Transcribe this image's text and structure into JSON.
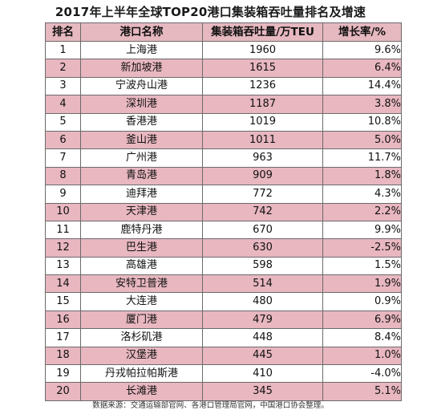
{
  "title": "2017年上半年全球TOP20港口集装箱吞吐量排名及增速",
  "headers": {
    "rank": "排名",
    "port": "港口名称",
    "teu": "集装箱吞吐量/万TEU",
    "growth": "增长率/%"
  },
  "rows": [
    {
      "rank": "1",
      "port": "上海港",
      "teu": "1960",
      "growth": "9.6%"
    },
    {
      "rank": "2",
      "port": "新加坡港",
      "teu": "1615",
      "growth": "6.4%"
    },
    {
      "rank": "3",
      "port": "宁波舟山港",
      "teu": "1236",
      "growth": "14.4%"
    },
    {
      "rank": "4",
      "port": "深圳港",
      "teu": "1187",
      "growth": "3.8%"
    },
    {
      "rank": "5",
      "port": "香港港",
      "teu": "1019",
      "growth": "10.8%"
    },
    {
      "rank": "6",
      "port": "釜山港",
      "teu": "1011",
      "growth": "5.0%"
    },
    {
      "rank": "7",
      "port": "广州港",
      "teu": "963",
      "growth": "11.7%"
    },
    {
      "rank": "8",
      "port": "青岛港",
      "teu": "909",
      "growth": "1.8%"
    },
    {
      "rank": "9",
      "port": "迪拜港",
      "teu": "772",
      "growth": "4.3%"
    },
    {
      "rank": "10",
      "port": "天津港",
      "teu": "742",
      "growth": "2.2%"
    },
    {
      "rank": "11",
      "port": "鹿特丹港",
      "teu": "670",
      "growth": "9.9%"
    },
    {
      "rank": "12",
      "port": "巴生港",
      "teu": "630",
      "growth": "-2.5%"
    },
    {
      "rank": "13",
      "port": "高雄港",
      "teu": "598",
      "growth": "1.5%"
    },
    {
      "rank": "14",
      "port": "安特卫普港",
      "teu": "514",
      "growth": "1.9%"
    },
    {
      "rank": "15",
      "port": "大连港",
      "teu": "480",
      "growth": "0.9%"
    },
    {
      "rank": "16",
      "port": "厦门港",
      "teu": "479",
      "growth": "6.9%"
    },
    {
      "rank": "17",
      "port": "洛杉矶港",
      "teu": "448",
      "growth": "8.4%"
    },
    {
      "rank": "18",
      "port": "汉堡港",
      "teu": "445",
      "growth": "1.0%"
    },
    {
      "rank": "19",
      "port": "丹戎帕拉帕斯港",
      "teu": "410",
      "growth": "-4.0%"
    },
    {
      "rank": "20",
      "port": "长滩港",
      "teu": "345",
      "growth": "5.1%"
    }
  ],
  "source": "数据来源：交通运输部官网、各港口管理局官网，中国港口协会整理。",
  "colors": {
    "header_bg": "#e6b8bf",
    "stripe_bg": "#e8b7c0",
    "border": "#6b6b6b"
  }
}
